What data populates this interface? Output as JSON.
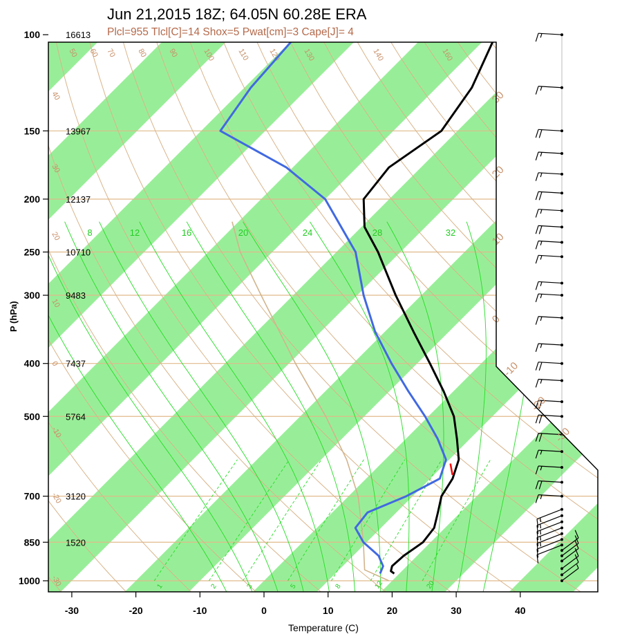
{
  "chart_data": {
    "type": "skew-t",
    "title": "Jun 21,2015 18Z; 64.05N 60.28E ERA",
    "subtitle": "Plcl=955 Tlcl[C]=14 Shox=5 Pwat[cm]=3 Cape[J]= 4",
    "xlabel": "Temperature (C)",
    "ylabel": "P (hPa)",
    "xlim": [
      -34,
      47
    ],
    "ylim": [
      1040,
      100
    ],
    "yscale": "log",
    "x_ticks": [
      -30,
      -20,
      -10,
      0,
      10,
      20,
      30,
      40
    ],
    "pressure_levels": [
      {
        "p": 1000,
        "label": "1000",
        "height": ""
      },
      {
        "p": 850,
        "label": "850",
        "height": "1520"
      },
      {
        "p": 700,
        "label": "700",
        "height": "3120"
      },
      {
        "p": 500,
        "label": "500",
        "height": "5764"
      },
      {
        "p": 400,
        "label": "400",
        "height": "7437"
      },
      {
        "p": 300,
        "label": "300",
        "height": "9483"
      },
      {
        "p": 250,
        "label": "250",
        "height": "10710"
      },
      {
        "p": 200,
        "label": "200",
        "height": "12137"
      },
      {
        "p": 150,
        "label": "150",
        "height": "13967"
      },
      {
        "p": 100,
        "label": "100",
        "height": "16613"
      }
    ],
    "isotherm_labels": [
      "-30",
      "-20",
      "-10",
      "0",
      "10",
      "20",
      "30"
    ],
    "dry_adiabat_labels": [
      "-30",
      "-20",
      "-10",
      "0",
      "10",
      "20",
      "30",
      "40",
      "50",
      "60",
      "70",
      "80",
      "90",
      "100",
      "110",
      "120",
      "130",
      "140",
      "160"
    ],
    "moist_adiabat_labels": [
      "8",
      "12",
      "16",
      "20",
      "24",
      "28",
      "32"
    ],
    "mixing_ratio_labels": [
      "1",
      "2",
      "3",
      "5",
      "8",
      "12",
      "20"
    ],
    "series": [
      {
        "name": "Temperature",
        "color": "#000000",
        "points": [
          {
            "p": 970,
            "t": 19.2
          },
          {
            "p": 960,
            "t": 18.3
          },
          {
            "p": 940,
            "t": 17.7
          },
          {
            "p": 900,
            "t": 17.9
          },
          {
            "p": 850,
            "t": 18.8
          },
          {
            "p": 800,
            "t": 18.3
          },
          {
            "p": 750,
            "t": 16.5
          },
          {
            "p": 700,
            "t": 14.5
          },
          {
            "p": 650,
            "t": 13.5
          },
          {
            "p": 600,
            "t": 11.5
          },
          {
            "p": 550,
            "t": 8.0
          },
          {
            "p": 500,
            "t": 4.0
          },
          {
            "p": 450,
            "t": -1.5
          },
          {
            "p": 400,
            "t": -8.0
          },
          {
            "p": 350,
            "t": -15.5
          },
          {
            "p": 300,
            "t": -24.0
          },
          {
            "p": 250,
            "t": -33.5
          },
          {
            "p": 225,
            "t": -39.5
          },
          {
            "p": 200,
            "t": -44.0
          },
          {
            "p": 175,
            "t": -45.0
          },
          {
            "p": 150,
            "t": -42.5
          },
          {
            "p": 125,
            "t": -44.5
          },
          {
            "p": 100,
            "t": -49.0
          }
        ]
      },
      {
        "name": "Dewpoint",
        "color": "#4169e1",
        "points": [
          {
            "p": 970,
            "t": 17.0
          },
          {
            "p": 940,
            "t": 16.3
          },
          {
            "p": 900,
            "t": 14.0
          },
          {
            "p": 850,
            "t": 9.5
          },
          {
            "p": 800,
            "t": 6.0
          },
          {
            "p": 750,
            "t": 5.5
          },
          {
            "p": 700,
            "t": 9.0
          },
          {
            "p": 650,
            "t": 11.5
          },
          {
            "p": 600,
            "t": 9.5
          },
          {
            "p": 550,
            "t": 5.0
          },
          {
            "p": 500,
            "t": -0.5
          },
          {
            "p": 450,
            "t": -7.0
          },
          {
            "p": 400,
            "t": -14.0
          },
          {
            "p": 350,
            "t": -21.5
          },
          {
            "p": 300,
            "t": -29.0
          },
          {
            "p": 250,
            "t": -37.0
          },
          {
            "p": 200,
            "t": -50.0
          },
          {
            "p": 175,
            "t": -61.0
          },
          {
            "p": 150,
            "t": -77.0
          },
          {
            "p": 125,
            "t": -79.0
          },
          {
            "p": 100,
            "t": -80.0
          }
        ]
      },
      {
        "name": "Parcel",
        "color": "#d2b48c",
        "points": [
          {
            "p": 1000,
            "t": 19.5
          },
          {
            "p": 955,
            "t": 14.0
          },
          {
            "p": 850,
            "t": 9.5
          },
          {
            "p": 700,
            "t": 1.5
          },
          {
            "p": 600,
            "t": -6.0
          },
          {
            "p": 500,
            "t": -16.0
          },
          {
            "p": 400,
            "t": -29.0
          },
          {
            "p": 300,
            "t": -45.0
          },
          {
            "p": 250,
            "t": -55.0
          },
          {
            "p": 220,
            "t": -61.0
          }
        ]
      },
      {
        "name": "CAPE",
        "color": "#ff0000",
        "points": [
          {
            "p": 640,
            "t": 12.9
          },
          {
            "p": 610,
            "t": 10.8
          }
        ]
      }
    ],
    "wind_barbs": [
      {
        "p": 100,
        "kind": "staff",
        "speed": 15
      },
      {
        "p": 125,
        "kind": "staff",
        "speed": 15
      },
      {
        "p": 150,
        "kind": "staff",
        "speed": 20
      },
      {
        "p": 165,
        "kind": "staff",
        "speed": 15
      },
      {
        "p": 180,
        "kind": "staff",
        "speed": 15
      },
      {
        "p": 195,
        "kind": "staff",
        "speed": 20
      },
      {
        "p": 210,
        "kind": "staff",
        "speed": 15
      },
      {
        "p": 225,
        "kind": "staff",
        "speed": 20
      },
      {
        "p": 240,
        "kind": "staff",
        "speed": 15
      },
      {
        "p": 255,
        "kind": "staff",
        "speed": 15
      },
      {
        "p": 285,
        "kind": "staff",
        "speed": 15
      },
      {
        "p": 300,
        "kind": "staff",
        "speed": 15
      },
      {
        "p": 330,
        "kind": "staff",
        "speed": 15
      },
      {
        "p": 370,
        "kind": "staff",
        "speed": 15
      },
      {
        "p": 400,
        "kind": "staff",
        "speed": 20
      },
      {
        "p": 430,
        "kind": "staff",
        "speed": 15
      },
      {
        "p": 470,
        "kind": "staff",
        "speed": 20
      },
      {
        "p": 500,
        "kind": "staff",
        "speed": 20
      },
      {
        "p": 540,
        "kind": "staff",
        "speed": 20
      },
      {
        "p": 580,
        "kind": "staff",
        "speed": 15
      },
      {
        "p": 620,
        "kind": "staff",
        "speed": 15
      },
      {
        "p": 660,
        "kind": "staff",
        "speed": 20
      },
      {
        "p": 700,
        "kind": "staff",
        "speed": 15
      },
      {
        "p": 740,
        "kind": "diag",
        "speed": 15
      },
      {
        "p": 760,
        "kind": "diag",
        "speed": 15
      },
      {
        "p": 780,
        "kind": "diag",
        "speed": 15
      },
      {
        "p": 800,
        "kind": "diag",
        "speed": 15
      },
      {
        "p": 820,
        "kind": "diag",
        "speed": 15
      },
      {
        "p": 840,
        "kind": "diag",
        "speed": 10
      },
      {
        "p": 860,
        "kind": "diag",
        "speed": 10
      },
      {
        "p": 880,
        "kind": "lower",
        "speed": 10
      },
      {
        "p": 900,
        "kind": "lower",
        "speed": 10
      },
      {
        "p": 920,
        "kind": "lower",
        "speed": 10
      },
      {
        "p": 950,
        "kind": "lower",
        "speed": 10
      },
      {
        "p": 975,
        "kind": "lower",
        "speed": 10
      },
      {
        "p": 1000,
        "kind": "lower",
        "speed": 5
      }
    ],
    "grid": true,
    "colors": {
      "isotherm_band": "#98ee98",
      "isobar": "#e0b98a",
      "dry_adiabat": "#d9b48a",
      "moist_adiabat": "#22dd22",
      "mixing_ratio": "#22dd22",
      "label_brown": "#c8906a",
      "temperature": "#000000",
      "dewpoint": "#4169e1",
      "parcel": "#d2b48c",
      "cape": "#ff0000"
    }
  }
}
